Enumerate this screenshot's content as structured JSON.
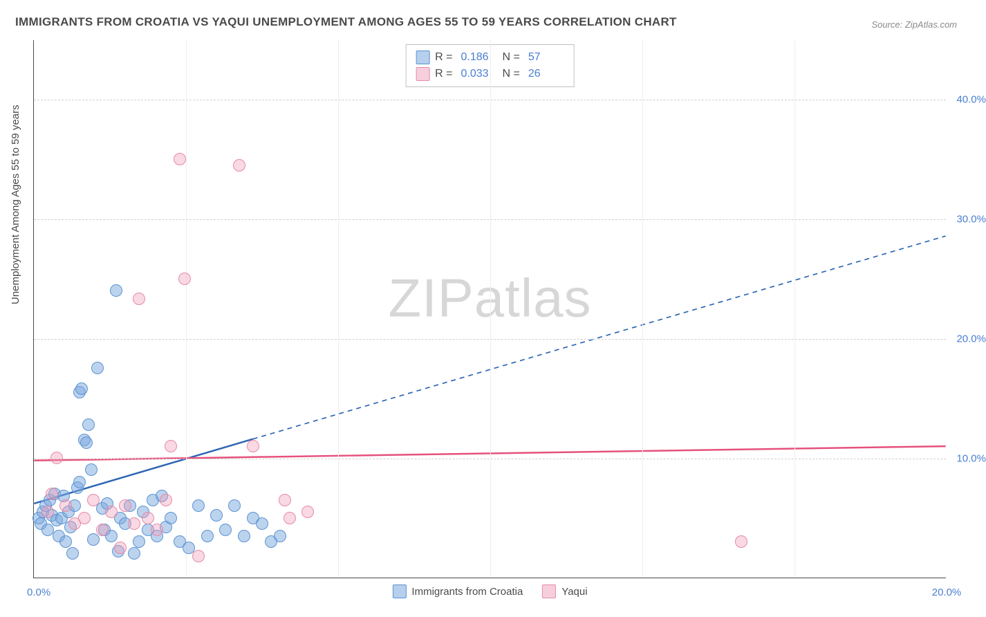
{
  "title": "IMMIGRANTS FROM CROATIA VS YAQUI UNEMPLOYMENT AMONG AGES 55 TO 59 YEARS CORRELATION CHART",
  "source": "Source: ZipAtlas.com",
  "watermark_a": "ZIP",
  "watermark_b": "atlas",
  "y_axis_label": "Unemployment Among Ages 55 to 59 years",
  "chart": {
    "type": "scatter",
    "x_range": [
      0,
      20
    ],
    "y_range": [
      0,
      45
    ],
    "x_ticks": [
      {
        "v": 0,
        "label": "0.0%"
      },
      {
        "v": 20,
        "label": "20.0%"
      }
    ],
    "y_ticks": [
      {
        "v": 10,
        "label": "10.0%"
      },
      {
        "v": 20,
        "label": "20.0%"
      },
      {
        "v": 30,
        "label": "30.0%"
      },
      {
        "v": 40,
        "label": "40.0%"
      }
    ],
    "x_gridlines": [
      3.33,
      6.67,
      10.0,
      13.33,
      16.67
    ],
    "background_color": "#ffffff",
    "grid_color": "#d8d8d8",
    "series": [
      {
        "name": "Immigrants from Croatia",
        "color_fill": "rgba(122,168,222,0.5)",
        "color_stroke": "#5a93d1",
        "R_label": "R =",
        "R_value": "0.186",
        "N_label": "N =",
        "N_value": "57",
        "trend": {
          "x1": 0,
          "y1": 6.2,
          "x2": 4.8,
          "y2": 11.6,
          "x2_ext": 20,
          "y2_ext": 28.6,
          "stroke": "#2f66b4",
          "width": 2.5
        },
        "points": [
          [
            0.1,
            5.0
          ],
          [
            0.15,
            4.5
          ],
          [
            0.2,
            5.5
          ],
          [
            0.25,
            6.0
          ],
          [
            0.3,
            4.0
          ],
          [
            0.35,
            6.5
          ],
          [
            0.4,
            5.2
          ],
          [
            0.45,
            7.0
          ],
          [
            0.5,
            4.8
          ],
          [
            0.55,
            3.5
          ],
          [
            0.6,
            5.0
          ],
          [
            0.65,
            6.8
          ],
          [
            0.7,
            3.0
          ],
          [
            0.75,
            5.5
          ],
          [
            0.8,
            4.2
          ],
          [
            0.85,
            2.0
          ],
          [
            0.9,
            6.0
          ],
          [
            0.95,
            7.5
          ],
          [
            1.0,
            8.0
          ],
          [
            1.0,
            15.5
          ],
          [
            1.05,
            15.8
          ],
          [
            1.1,
            11.5
          ],
          [
            1.15,
            11.3
          ],
          [
            1.2,
            12.8
          ],
          [
            1.25,
            9.0
          ],
          [
            1.3,
            3.2
          ],
          [
            1.4,
            17.5
          ],
          [
            1.5,
            5.8
          ],
          [
            1.55,
            4.0
          ],
          [
            1.6,
            6.2
          ],
          [
            1.7,
            3.5
          ],
          [
            1.8,
            24.0
          ],
          [
            1.85,
            2.2
          ],
          [
            1.9,
            5.0
          ],
          [
            2.0,
            4.5
          ],
          [
            2.1,
            6.0
          ],
          [
            2.2,
            2.0
          ],
          [
            2.3,
            3.0
          ],
          [
            2.4,
            5.5
          ],
          [
            2.5,
            4.0
          ],
          [
            2.6,
            6.5
          ],
          [
            2.7,
            3.5
          ],
          [
            2.8,
            6.8
          ],
          [
            2.9,
            4.2
          ],
          [
            3.0,
            5.0
          ],
          [
            3.2,
            3.0
          ],
          [
            3.4,
            2.5
          ],
          [
            3.6,
            6.0
          ],
          [
            3.8,
            3.5
          ],
          [
            4.0,
            5.2
          ],
          [
            4.2,
            4.0
          ],
          [
            4.4,
            6.0
          ],
          [
            4.6,
            3.5
          ],
          [
            4.8,
            5.0
          ],
          [
            5.0,
            4.5
          ],
          [
            5.2,
            3.0
          ],
          [
            5.4,
            3.5
          ]
        ]
      },
      {
        "name": "Yaqui",
        "color_fill": "rgba(240,160,185,0.4)",
        "color_stroke": "#e68aa8",
        "R_label": "R =",
        "R_value": "0.033",
        "N_label": "N =",
        "N_value": "26",
        "trend": {
          "x1": 0,
          "y1": 9.8,
          "x2": 20,
          "y2": 11.0,
          "stroke": "#e5517c",
          "width": 2.5
        },
        "points": [
          [
            0.3,
            5.5
          ],
          [
            0.5,
            10.0
          ],
          [
            0.7,
            6.0
          ],
          [
            0.9,
            4.5
          ],
          [
            1.1,
            5.0
          ],
          [
            1.3,
            6.5
          ],
          [
            1.5,
            4.0
          ],
          [
            1.7,
            5.5
          ],
          [
            1.9,
            2.5
          ],
          [
            2.0,
            6.0
          ],
          [
            2.2,
            4.5
          ],
          [
            2.3,
            23.3
          ],
          [
            2.5,
            5.0
          ],
          [
            2.7,
            4.0
          ],
          [
            2.9,
            6.5
          ],
          [
            3.0,
            11.0
          ],
          [
            3.2,
            35.0
          ],
          [
            3.3,
            25.0
          ],
          [
            3.6,
            1.8
          ],
          [
            4.5,
            34.5
          ],
          [
            4.8,
            11.0
          ],
          [
            5.5,
            6.5
          ],
          [
            5.6,
            5.0
          ],
          [
            6.0,
            5.5
          ],
          [
            15.5,
            3.0
          ],
          [
            0.4,
            7.0
          ]
        ]
      }
    ]
  },
  "legend_bottom": [
    {
      "swatch": "blue",
      "label": "Immigrants from Croatia"
    },
    {
      "swatch": "pink",
      "label": "Yaqui"
    }
  ]
}
